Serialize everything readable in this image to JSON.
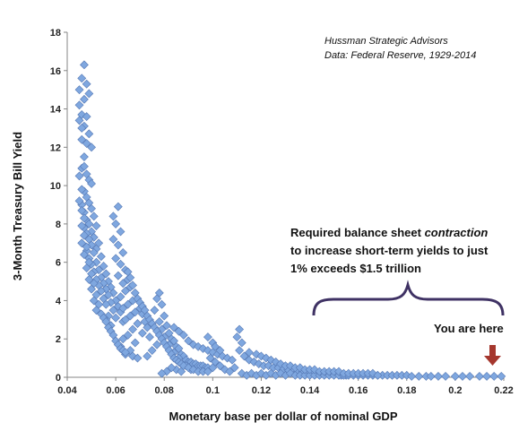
{
  "chart_data": {
    "type": "scatter",
    "title": "",
    "xlabel": "Monetary base per dollar of nominal GDP",
    "ylabel": "3-Month Treasury Bill Yield",
    "xlim": [
      0.04,
      0.22
    ],
    "ylim": [
      0,
      18
    ],
    "xticks": [
      "0.04",
      "0.06",
      "0.08",
      "0.1",
      "0.12",
      "0.14",
      "0.16",
      "0.18",
      "0.2",
      "0.22"
    ],
    "yticks": [
      "0",
      "2",
      "4",
      "6",
      "8",
      "10",
      "12",
      "14",
      "16",
      "18"
    ],
    "grid": false,
    "marker": "diamond",
    "marker_color": "#7fa7df",
    "marker_edge_color": "#5578b4",
    "annotations": {
      "source_line1": "Hussman Strategic Advisors",
      "source_line2": "Data: Federal Reserve, 1929-2014",
      "callout_line1_pre": "Required balance sheet ",
      "callout_line1_em": "contraction",
      "callout_line2": "to increase short-term yields to just",
      "callout_line3": "1% exceeds $1.5 trillion",
      "marker_label": "You are here",
      "brace_color": "#3f3264",
      "arrow_color": "#a5372e"
    },
    "points": [
      [
        0.047,
        16.3
      ],
      [
        0.046,
        15.6
      ],
      [
        0.048,
        15.3
      ],
      [
        0.045,
        15.0
      ],
      [
        0.049,
        14.8
      ],
      [
        0.047,
        14.5
      ],
      [
        0.046,
        13.7
      ],
      [
        0.048,
        13.6
      ],
      [
        0.045,
        13.4
      ],
      [
        0.047,
        13.1
      ],
      [
        0.049,
        12.7
      ],
      [
        0.048,
        12.2
      ],
      [
        0.05,
        12.0
      ],
      [
        0.047,
        11.5
      ],
      [
        0.046,
        10.9
      ],
      [
        0.048,
        10.6
      ],
      [
        0.049,
        10.3
      ],
      [
        0.05,
        10.1
      ],
      [
        0.047,
        9.7
      ],
      [
        0.048,
        9.4
      ],
      [
        0.049,
        9.1
      ],
      [
        0.046,
        9.0
      ],
      [
        0.05,
        8.8
      ],
      [
        0.047,
        8.6
      ],
      [
        0.051,
        8.4
      ],
      [
        0.048,
        8.2
      ],
      [
        0.049,
        8.0
      ],
      [
        0.052,
        7.9
      ],
      [
        0.047,
        7.8
      ],
      [
        0.05,
        7.6
      ],
      [
        0.048,
        7.5
      ],
      [
        0.051,
        7.3
      ],
      [
        0.049,
        7.2
      ],
      [
        0.053,
        7.0
      ],
      [
        0.05,
        6.9
      ],
      [
        0.052,
        6.7
      ],
      [
        0.048,
        6.6
      ],
      [
        0.051,
        6.5
      ],
      [
        0.054,
        6.3
      ],
      [
        0.049,
        6.2
      ],
      [
        0.052,
        6.0
      ],
      [
        0.05,
        5.9
      ],
      [
        0.055,
        5.8
      ],
      [
        0.053,
        5.6
      ],
      [
        0.051,
        5.5
      ],
      [
        0.056,
        5.4
      ],
      [
        0.054,
        5.2
      ],
      [
        0.052,
        5.1
      ],
      [
        0.057,
        5.0
      ],
      [
        0.055,
        4.9
      ],
      [
        0.053,
        4.8
      ],
      [
        0.058,
        4.7
      ],
      [
        0.056,
        4.6
      ],
      [
        0.054,
        4.5
      ],
      [
        0.059,
        4.4
      ],
      [
        0.057,
        4.3
      ],
      [
        0.055,
        4.1
      ],
      [
        0.06,
        4.0
      ],
      [
        0.058,
        3.9
      ],
      [
        0.056,
        3.8
      ],
      [
        0.061,
        3.7
      ],
      [
        0.059,
        3.5
      ],
      [
        0.062,
        3.4
      ],
      [
        0.057,
        3.2
      ],
      [
        0.06,
        3.1
      ],
      [
        0.056,
        3.0
      ],
      [
        0.063,
        2.9
      ],
      [
        0.058,
        2.7
      ],
      [
        0.061,
        8.9
      ],
      [
        0.059,
        8.4
      ],
      [
        0.06,
        8.0
      ],
      [
        0.062,
        7.6
      ],
      [
        0.059,
        7.2
      ],
      [
        0.061,
        6.9
      ],
      [
        0.063,
        6.5
      ],
      [
        0.06,
        6.2
      ],
      [
        0.062,
        5.9
      ],
      [
        0.064,
        5.6
      ],
      [
        0.061,
        5.3
      ],
      [
        0.065,
        5.1
      ],
      [
        0.063,
        4.9
      ],
      [
        0.066,
        4.7
      ],
      [
        0.064,
        4.5
      ],
      [
        0.062,
        4.2
      ],
      [
        0.067,
        4.0
      ],
      [
        0.065,
        3.8
      ],
      [
        0.063,
        3.6
      ],
      [
        0.068,
        3.4
      ],
      [
        0.066,
        3.2
      ],
      [
        0.064,
        3.0
      ],
      [
        0.069,
        2.8
      ],
      [
        0.067,
        2.5
      ],
      [
        0.065,
        2.2
      ],
      [
        0.063,
        2.0
      ],
      [
        0.068,
        1.8
      ],
      [
        0.062,
        1.6
      ],
      [
        0.066,
        1.4
      ],
      [
        0.064,
        1.2
      ],
      [
        0.067,
        1.1
      ],
      [
        0.069,
        1.0
      ],
      [
        0.07,
        3.6
      ],
      [
        0.071,
        3.3
      ],
      [
        0.072,
        2.9
      ],
      [
        0.073,
        2.6
      ],
      [
        0.071,
        2.3
      ],
      [
        0.074,
        2.1
      ],
      [
        0.078,
        4.4
      ],
      [
        0.077,
        4.1
      ],
      [
        0.079,
        3.8
      ],
      [
        0.076,
        3.5
      ],
      [
        0.08,
        3.2
      ],
      [
        0.078,
        2.9
      ],
      [
        0.081,
        2.7
      ],
      [
        0.079,
        2.5
      ],
      [
        0.082,
        2.3
      ],
      [
        0.08,
        2.1
      ],
      [
        0.083,
        2.0
      ],
      [
        0.084,
        1.9
      ],
      [
        0.082,
        1.7
      ],
      [
        0.085,
        1.6
      ],
      [
        0.086,
        1.5
      ],
      [
        0.084,
        1.3
      ],
      [
        0.087,
        1.2
      ],
      [
        0.088,
        1.1
      ],
      [
        0.086,
        1.0
      ],
      [
        0.089,
        0.9
      ],
      [
        0.09,
        0.8
      ],
      [
        0.091,
        0.8
      ],
      [
        0.092,
        0.7
      ],
      [
        0.093,
        0.7
      ],
      [
        0.094,
        0.6
      ],
      [
        0.095,
        0.6
      ],
      [
        0.096,
        0.6
      ],
      [
        0.097,
        0.5
      ],
      [
        0.098,
        0.5
      ],
      [
        0.1,
        0.5
      ],
      [
        0.085,
        0.4
      ],
      [
        0.087,
        0.3
      ],
      [
        0.089,
        0.6
      ],
      [
        0.091,
        0.4
      ],
      [
        0.083,
        0.5
      ],
      [
        0.081,
        0.3
      ],
      [
        0.079,
        0.2
      ],
      [
        0.075,
        1.4
      ],
      [
        0.073,
        1.1
      ],
      [
        0.077,
        1.7
      ],
      [
        0.084,
        2.6
      ],
      [
        0.086,
        2.4
      ],
      [
        0.088,
        2.2
      ],
      [
        0.09,
        1.9
      ],
      [
        0.092,
        1.7
      ],
      [
        0.094,
        1.6
      ],
      [
        0.096,
        1.5
      ],
      [
        0.098,
        1.4
      ],
      [
        0.1,
        1.3
      ],
      [
        0.102,
        1.2
      ],
      [
        0.104,
        1.1
      ],
      [
        0.106,
        1.0
      ],
      [
        0.108,
        0.9
      ],
      [
        0.098,
        2.1
      ],
      [
        0.1,
        1.8
      ],
      [
        0.101,
        1.6
      ],
      [
        0.103,
        1.4
      ],
      [
        0.099,
        1.0
      ],
      [
        0.101,
        0.8
      ],
      [
        0.103,
        0.6
      ],
      [
        0.105,
        0.4
      ],
      [
        0.107,
        0.3
      ],
      [
        0.109,
        0.5
      ],
      [
        0.111,
        2.5
      ],
      [
        0.11,
        2.1
      ],
      [
        0.112,
        1.8
      ],
      [
        0.111,
        1.4
      ],
      [
        0.113,
        1.1
      ],
      [
        0.115,
        0.9
      ],
      [
        0.117,
        0.8
      ],
      [
        0.119,
        0.7
      ],
      [
        0.121,
        0.6
      ],
      [
        0.123,
        0.6
      ],
      [
        0.125,
        0.5
      ],
      [
        0.127,
        0.5
      ],
      [
        0.129,
        0.4
      ],
      [
        0.131,
        0.4
      ],
      [
        0.133,
        0.3
      ],
      [
        0.135,
        0.3
      ],
      [
        0.137,
        0.3
      ],
      [
        0.139,
        0.3
      ],
      [
        0.141,
        0.2
      ],
      [
        0.143,
        0.2
      ],
      [
        0.145,
        0.2
      ],
      [
        0.147,
        0.2
      ],
      [
        0.149,
        0.2
      ],
      [
        0.151,
        0.2
      ],
      [
        0.153,
        0.1
      ],
      [
        0.155,
        0.1
      ],
      [
        0.112,
        0.2
      ],
      [
        0.114,
        0.1
      ],
      [
        0.116,
        0.2
      ],
      [
        0.118,
        0.1
      ],
      [
        0.12,
        0.2
      ],
      [
        0.122,
        0.1
      ],
      [
        0.124,
        0.2
      ],
      [
        0.126,
        0.1
      ],
      [
        0.128,
        0.2
      ],
      [
        0.13,
        0.1
      ],
      [
        0.132,
        0.2
      ],
      [
        0.134,
        0.1
      ],
      [
        0.136,
        0.1
      ],
      [
        0.138,
        0.1
      ],
      [
        0.14,
        0.1
      ],
      [
        0.142,
        0.1
      ],
      [
        0.144,
        0.1
      ],
      [
        0.146,
        0.1
      ],
      [
        0.148,
        0.1
      ],
      [
        0.15,
        0.1
      ],
      [
        0.152,
        0.1
      ],
      [
        0.154,
        0.1
      ],
      [
        0.156,
        0.1
      ],
      [
        0.158,
        0.1
      ],
      [
        0.16,
        0.1
      ],
      [
        0.162,
        0.1
      ],
      [
        0.164,
        0.1
      ],
      [
        0.166,
        0.1
      ],
      [
        0.168,
        0.1
      ],
      [
        0.17,
        0.1
      ],
      [
        0.172,
        0.1
      ],
      [
        0.174,
        0.1
      ],
      [
        0.176,
        0.1
      ],
      [
        0.178,
        0.1
      ],
      [
        0.18,
        0.1
      ],
      [
        0.182,
        0.05
      ],
      [
        0.185,
        0.05
      ],
      [
        0.188,
        0.05
      ],
      [
        0.19,
        0.05
      ],
      [
        0.193,
        0.05
      ],
      [
        0.196,
        0.05
      ],
      [
        0.2,
        0.05
      ],
      [
        0.203,
        0.05
      ],
      [
        0.206,
        0.05
      ],
      [
        0.21,
        0.05
      ],
      [
        0.213,
        0.05
      ],
      [
        0.216,
        0.05
      ],
      [
        0.219,
        0.05
      ],
      [
        0.115,
        1.3
      ],
      [
        0.118,
        1.2
      ],
      [
        0.12,
        1.1
      ],
      [
        0.122,
        1.0
      ],
      [
        0.124,
        0.9
      ],
      [
        0.126,
        0.8
      ],
      [
        0.128,
        0.7
      ],
      [
        0.13,
        0.6
      ],
      [
        0.132,
        0.6
      ],
      [
        0.134,
        0.5
      ],
      [
        0.136,
        0.5
      ],
      [
        0.138,
        0.4
      ],
      [
        0.14,
        0.4
      ],
      [
        0.142,
        0.4
      ],
      [
        0.144,
        0.3
      ],
      [
        0.146,
        0.3
      ],
      [
        0.148,
        0.3
      ],
      [
        0.15,
        0.3
      ],
      [
        0.152,
        0.3
      ],
      [
        0.154,
        0.2
      ],
      [
        0.156,
        0.2
      ],
      [
        0.158,
        0.2
      ],
      [
        0.16,
        0.2
      ],
      [
        0.162,
        0.2
      ],
      [
        0.164,
        0.2
      ],
      [
        0.166,
        0.2
      ],
      [
        0.168,
        0.1
      ],
      [
        0.045,
        14.2
      ],
      [
        0.046,
        13.0
      ],
      [
        0.046,
        12.4
      ],
      [
        0.047,
        11.0
      ],
      [
        0.045,
        10.5
      ],
      [
        0.046,
        9.8
      ],
      [
        0.045,
        9.2
      ],
      [
        0.046,
        8.7
      ],
      [
        0.047,
        8.3
      ],
      [
        0.046,
        7.9
      ],
      [
        0.047,
        7.4
      ],
      [
        0.046,
        7.0
      ],
      [
        0.048,
        6.8
      ],
      [
        0.047,
        6.4
      ],
      [
        0.049,
        6.0
      ],
      [
        0.048,
        5.7
      ],
      [
        0.05,
        5.4
      ],
      [
        0.049,
        5.1
      ],
      [
        0.051,
        4.9
      ],
      [
        0.05,
        4.6
      ],
      [
        0.052,
        4.3
      ],
      [
        0.051,
        4.0
      ],
      [
        0.053,
        3.8
      ],
      [
        0.052,
        3.5
      ],
      [
        0.054,
        3.3
      ],
      [
        0.055,
        3.1
      ],
      [
        0.056,
        2.9
      ],
      [
        0.057,
        2.6
      ],
      [
        0.058,
        2.4
      ],
      [
        0.059,
        2.2
      ],
      [
        0.06,
        1.9
      ],
      [
        0.061,
        1.7
      ],
      [
        0.062,
        1.5
      ],
      [
        0.063,
        1.4
      ],
      [
        0.064,
        1.3
      ],
      [
        0.065,
        5.5
      ],
      [
        0.066,
        5.2
      ],
      [
        0.067,
        4.8
      ],
      [
        0.068,
        4.4
      ],
      [
        0.069,
        4.1
      ],
      [
        0.07,
        3.9
      ],
      [
        0.071,
        3.7
      ],
      [
        0.072,
        3.5
      ],
      [
        0.073,
        3.2
      ],
      [
        0.074,
        3.0
      ],
      [
        0.075,
        2.8
      ],
      [
        0.076,
        2.6
      ],
      [
        0.077,
        2.4
      ],
      [
        0.078,
        2.2
      ],
      [
        0.079,
        2.0
      ],
      [
        0.08,
        1.8
      ],
      [
        0.081,
        1.6
      ],
      [
        0.082,
        1.4
      ],
      [
        0.083,
        1.2
      ],
      [
        0.084,
        1.0
      ],
      [
        0.085,
        0.9
      ],
      [
        0.086,
        0.8
      ],
      [
        0.087,
        0.7
      ],
      [
        0.088,
        0.6
      ],
      [
        0.09,
        0.5
      ],
      [
        0.092,
        0.4
      ],
      [
        0.094,
        0.3
      ],
      [
        0.096,
        0.3
      ],
      [
        0.098,
        0.3
      ]
    ]
  }
}
